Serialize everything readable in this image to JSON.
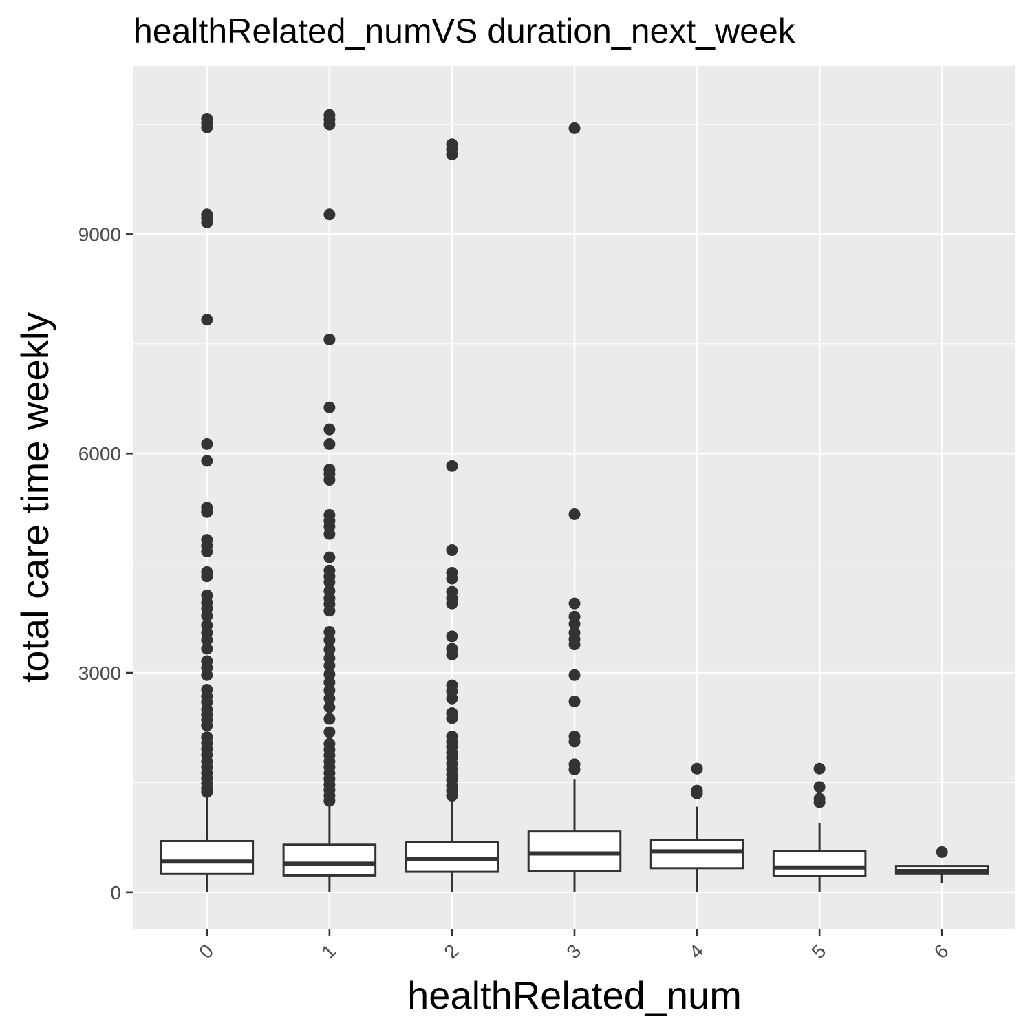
{
  "chart_data": {
    "type": "boxplot",
    "title": "healthRelated_numVS duration_next_week",
    "xlabel": "healthRelated_num",
    "ylabel": "total care time weekly",
    "categories": [
      "0",
      "1",
      "2",
      "3",
      "4",
      "5",
      "6"
    ],
    "y_ticks": [
      0,
      3000,
      6000,
      9000
    ],
    "ylim": [
      -500,
      11300
    ],
    "grid": true,
    "colors": {
      "panel": "#ebebeb",
      "grid": "#ffffff",
      "ink": "#333333",
      "box_fill": "#ffffff"
    },
    "boxes": [
      {
        "category": "0",
        "lower_whisker": 0,
        "q1": 250,
        "median": 420,
        "q3": 700,
        "upper_whisker": 1350,
        "outliers": [
          10580,
          10520,
          10460,
          9270,
          9220,
          9160,
          7830,
          6130,
          5900,
          5260,
          5200,
          4820,
          4740,
          4660,
          4380,
          4320,
          4060,
          3960,
          3880,
          3780,
          3650,
          3550,
          3450,
          3330,
          3160,
          3070,
          2970,
          2770,
          2680,
          2600,
          2500,
          2430,
          2360,
          2280,
          2120,
          2040,
          1960,
          1880,
          1790,
          1710,
          1630,
          1560,
          1490,
          1420,
          1370
        ]
      },
      {
        "category": "1",
        "lower_whisker": 0,
        "q1": 230,
        "median": 390,
        "q3": 650,
        "upper_whisker": 1220,
        "outliers": [
          10630,
          10570,
          10500,
          9270,
          7560,
          6630,
          6330,
          6130,
          5780,
          5720,
          5640,
          5160,
          5080,
          5000,
          4900,
          4580,
          4400,
          4320,
          4240,
          4120,
          4020,
          3940,
          3850,
          3560,
          3450,
          3320,
          3200,
          3100,
          2980,
          2870,
          2760,
          2650,
          2530,
          2370,
          2190,
          2030,
          1950,
          1870,
          1790,
          1710,
          1630,
          1550,
          1470,
          1400,
          1320,
          1250
        ]
      },
      {
        "category": "2",
        "lower_whisker": 0,
        "q1": 280,
        "median": 460,
        "q3": 690,
        "upper_whisker": 1280,
        "outliers": [
          10230,
          10160,
          10090,
          5830,
          4680,
          4370,
          4290,
          4110,
          4020,
          3950,
          3500,
          3330,
          3250,
          2830,
          2750,
          2650,
          2450,
          2380,
          2130,
          2060,
          1990,
          1910,
          1840,
          1760,
          1680,
          1610,
          1540,
          1460,
          1390,
          1320
        ]
      },
      {
        "category": "3",
        "lower_whisker": 0,
        "q1": 290,
        "median": 530,
        "q3": 830,
        "upper_whisker": 1550,
        "outliers": [
          10450,
          5170,
          3950,
          3770,
          3670,
          3550,
          3460,
          3390,
          2970,
          2610,
          2130,
          2060,
          1750,
          1680
        ]
      },
      {
        "category": "4",
        "lower_whisker": 0,
        "q1": 330,
        "median": 560,
        "q3": 710,
        "upper_whisker": 1170,
        "outliers": [
          1690,
          1390,
          1350
        ]
      },
      {
        "category": "5",
        "lower_whisker": 0,
        "q1": 220,
        "median": 340,
        "q3": 560,
        "upper_whisker": 950,
        "outliers": [
          1690,
          1440,
          1280,
          1230
        ]
      },
      {
        "category": "6",
        "lower_whisker": 130,
        "q1": 250,
        "median": 290,
        "q3": 360,
        "upper_whisker": 360,
        "outliers": [
          550
        ]
      }
    ]
  }
}
